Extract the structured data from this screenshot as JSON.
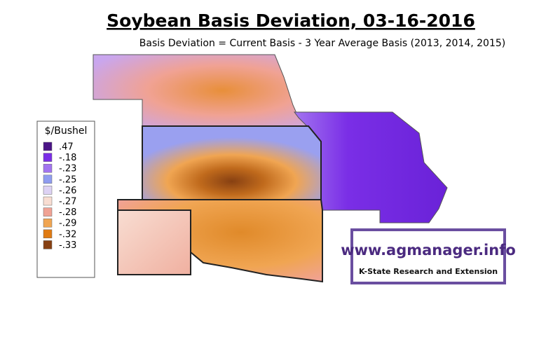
{
  "header": {
    "title": "Soybean Basis Deviation, 03-16-2016",
    "subtitle": "Basis Deviation = Current Basis - 3 Year Average Basis (2013, 2014, 2015)"
  },
  "legend": {
    "title": "$/Bushel",
    "items": [
      {
        "label": ".47",
        "color": "#4a1486"
      },
      {
        "label": "-.18",
        "color": "#7a2ee6"
      },
      {
        "label": "-.23",
        "color": "#a274f0"
      },
      {
        "label": "-.25",
        "color": "#8f9cf0"
      },
      {
        "label": "-.26",
        "color": "#ddd2f4"
      },
      {
        "label": "-.27",
        "color": "#f8ddd2"
      },
      {
        "label": "-.28",
        "color": "#f0a294"
      },
      {
        "label": "-.29",
        "color": "#f0a552"
      },
      {
        "label": "-.32",
        "color": "#e07b12"
      },
      {
        "label": "-.33",
        "color": "#874012"
      }
    ]
  },
  "logo": {
    "url": "www.agmanager.info",
    "org": "K-State Research and Extension"
  }
}
